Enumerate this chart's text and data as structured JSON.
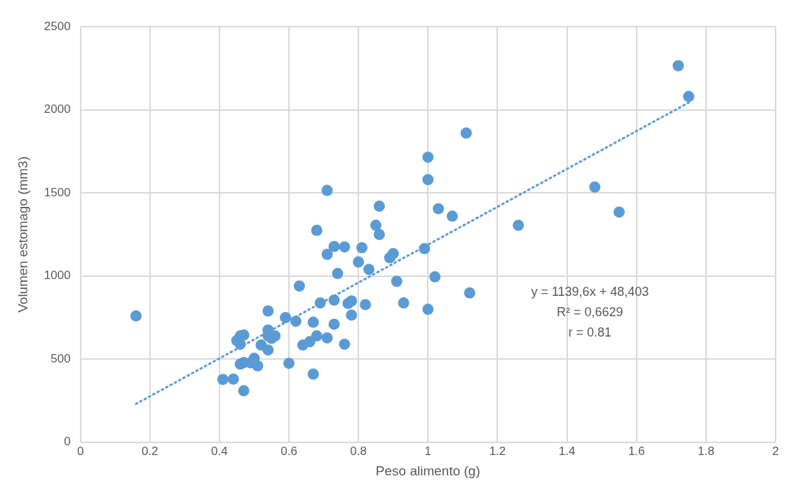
{
  "chart_data": {
    "type": "scatter",
    "xlabel": "Peso alimento (g)",
    "ylabel": "Volumen estomago (mm3)",
    "xlim": [
      0,
      2
    ],
    "xticks": [
      0,
      0.2,
      0.4,
      0.6,
      0.8,
      1,
      1.2,
      1.4,
      1.6,
      1.8,
      2
    ],
    "ylim": [
      0,
      2500
    ],
    "yticks": [
      0,
      500,
      1000,
      1500,
      2000,
      2500
    ],
    "grid": true,
    "legend": false,
    "marker": "circle",
    "series": [
      {
        "type": "scatter",
        "color": "#5b9bd5",
        "x": [
          0.16,
          0.41,
          0.44,
          0.47,
          0.45,
          0.46,
          0.46,
          0.47,
          0.46,
          0.47,
          0.49,
          0.5,
          0.51,
          0.52,
          0.54,
          0.54,
          0.54,
          0.54,
          0.55,
          0.56,
          0.59,
          0.6,
          0.62,
          0.63,
          0.64,
          0.66,
          0.67,
          0.67,
          0.68,
          0.68,
          0.69,
          0.71,
          0.71,
          0.71,
          0.73,
          0.73,
          0.73,
          0.74,
          0.76,
          0.76,
          0.77,
          0.78,
          0.78,
          0.8,
          0.81,
          0.82,
          0.83,
          0.85,
          0.86,
          0.86,
          0.89,
          0.9,
          0.91,
          0.93,
          0.99,
          1.0,
          1.0,
          1.0,
          1.02,
          1.03,
          1.07,
          1.11,
          1.12,
          1.26,
          1.48,
          1.55,
          1.72,
          1.75
        ],
        "values": [
          760,
          378,
          380,
          310,
          612,
          590,
          640,
          645,
          470,
          480,
          478,
          505,
          460,
          585,
          555,
          640,
          675,
          790,
          625,
          640,
          750,
          475,
          728,
          940,
          585,
          605,
          722,
          410,
          640,
          1275,
          838,
          1515,
          1130,
          628,
          1178,
          855,
          710,
          1015,
          1175,
          590,
          835,
          850,
          765,
          1085,
          1170,
          828,
          1040,
          1305,
          1420,
          1250,
          1110,
          1135,
          968,
          838,
          1165,
          1715,
          1580,
          800,
          995,
          1405,
          1360,
          1860,
          898,
          1305,
          1535,
          1385,
          2265,
          2080
        ]
      },
      {
        "type": "line",
        "color": "#5b9bd5",
        "line_style": "dotted",
        "marker": "none",
        "x": [
          0.16,
          1.75
        ],
        "values": [
          231,
          2043
        ]
      }
    ],
    "annotations": [
      "y = 1139,6x + 48,403",
      "R² = 0,6629",
      "r = 0.81"
    ]
  }
}
